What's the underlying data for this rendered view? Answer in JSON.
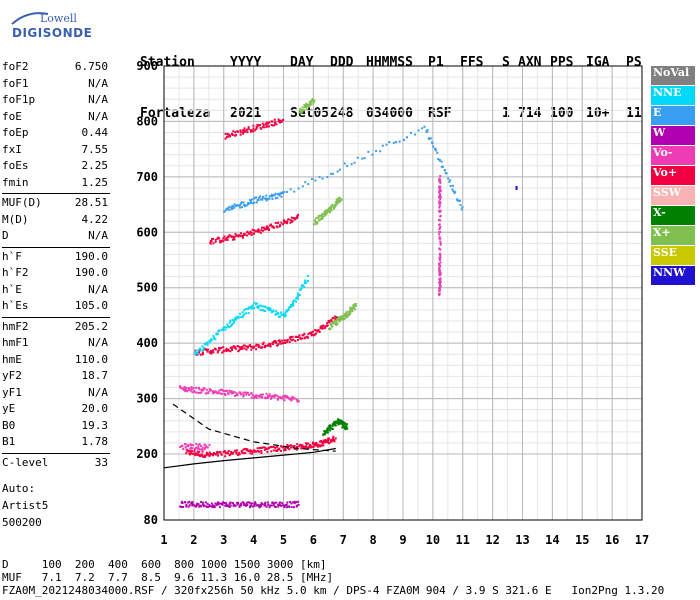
{
  "logo": {
    "line1": "Lowell",
    "line2": "DIGISONDE"
  },
  "header": {
    "labels": [
      "Station",
      "YYYY",
      "DAY",
      "DDD",
      "HHMMSS",
      "P1",
      "FFS",
      "S",
      "AXN",
      "PPS",
      "IGA",
      "PS"
    ],
    "values": [
      "Fortaleza",
      "2021",
      "Set05",
      "248",
      "034000",
      "RSF",
      "",
      "1",
      "714",
      "100",
      "10+",
      "11"
    ]
  },
  "params": [
    {
      "key": "foF2",
      "value": "6.750"
    },
    {
      "key": "foF1",
      "value": "N/A"
    },
    {
      "key": "foF1p",
      "value": "N/A"
    },
    {
      "key": "foE",
      "value": "N/A"
    },
    {
      "key": "foEp",
      "value": "0.44"
    },
    {
      "key": "fxI",
      "value": "7.55"
    },
    {
      "key": "foEs",
      "value": "2.25"
    },
    {
      "key": "fmin",
      "value": "1.25"
    },
    {
      "key": "MUF(D)",
      "value": "28.51"
    },
    {
      "key": "M(D)",
      "value": "4.22"
    },
    {
      "key": "D",
      "value": "N/A"
    },
    {
      "key": "h`F",
      "value": "190.0"
    },
    {
      "key": "h`F2",
      "value": "190.0"
    },
    {
      "key": "h`E",
      "value": "N/A"
    },
    {
      "key": "h`Es",
      "value": "105.0"
    },
    {
      "key": "hmF2",
      "value": "205.2"
    },
    {
      "key": "hmF1",
      "value": "N/A"
    },
    {
      "key": "hmE",
      "value": "110.0"
    },
    {
      "key": "yF2",
      "value": "18.7"
    },
    {
      "key": "yF1",
      "value": "N/A"
    },
    {
      "key": "yE",
      "value": "20.0"
    },
    {
      "key": "B0",
      "value": "19.3"
    },
    {
      "key": "B1",
      "value": "1.78"
    },
    {
      "key": "C-level",
      "value": "33"
    }
  ],
  "auto": {
    "label": "Auto:",
    "system": "Artist5",
    "version": "500200"
  },
  "footer": {
    "line1": "D     100  200  400  600  800 1000 1500 3000 [km]",
    "line2": "MUF   7.1  7.2  7.7  8.5  9.6 11.3 16.0 28.5 [MHz]",
    "line3": "FZA0M_2021248034000.RSF / 320fx256h 50 kHz 5.0 km / DPS-4 FZA0M 904 / 3.9 S 321.6 E   Ion2Png 1.3.20"
  },
  "legend": [
    {
      "label": "NoVal",
      "color": "#808080"
    },
    {
      "label": "NNE",
      "color": "#00d8f8"
    },
    {
      "label": "E",
      "color": "#3a9ef0"
    },
    {
      "label": "W",
      "color": "#b000b0"
    },
    {
      "label": "Vo-",
      "color": "#f03cb4"
    },
    {
      "label": "Vo+",
      "color": "#f00040"
    },
    {
      "label": "SSW",
      "color": "#f8b4b4"
    },
    {
      "label": "X-",
      "color": "#008000"
    },
    {
      "label": "X+",
      "color": "#80c050"
    },
    {
      "label": "SSE",
      "color": "#c8c800"
    },
    {
      "label": "NNW",
      "color": "#2010d0"
    }
  ],
  "chart_data": {
    "type": "scatter",
    "xlabel": "",
    "ylabel": "",
    "xlim": [
      1,
      17
    ],
    "ylim": [
      80,
      900
    ],
    "x_ticks": [
      1,
      2,
      3,
      4,
      5,
      6,
      7,
      8,
      9,
      10,
      11,
      12,
      13,
      14,
      15,
      16,
      17
    ],
    "y_ticks": [
      80,
      200,
      300,
      400,
      500,
      600,
      700,
      800,
      900
    ],
    "grid": true,
    "legend_position": "right",
    "traces": [
      {
        "name": "O-trace F",
        "color": "#f00040",
        "points": [
          [
            1.7,
            205
          ],
          [
            2.5,
            200
          ],
          [
            3.5,
            205
          ],
          [
            4.5,
            210
          ],
          [
            5.5,
            215
          ],
          [
            6.2,
            220
          ],
          [
            6.7,
            230
          ]
        ]
      },
      {
        "name": "O-trace F 2nd hop",
        "color": "#f00040",
        "points": [
          [
            2.0,
            385
          ],
          [
            3.0,
            390
          ],
          [
            4.0,
            395
          ],
          [
            5.0,
            405
          ],
          [
            6.0,
            420
          ],
          [
            6.8,
            450
          ]
        ]
      },
      {
        "name": "O-trace F 3rd hop",
        "color": "#f00040",
        "points": [
          [
            2.5,
            585
          ],
          [
            3.5,
            595
          ],
          [
            4.5,
            610
          ],
          [
            5.5,
            630
          ]
        ]
      },
      {
        "name": "O-trace F 4th hop",
        "color": "#f00040",
        "points": [
          [
            3.0,
            775
          ],
          [
            4.0,
            790
          ],
          [
            5.0,
            805
          ]
        ]
      },
      {
        "name": "Es",
        "color": "#b000b0",
        "points": [
          [
            1.5,
            110
          ],
          [
            2.5,
            110
          ],
          [
            3.5,
            110
          ],
          [
            4.5,
            110
          ],
          [
            5.5,
            110
          ]
        ]
      },
      {
        "name": "Es 2nd hop",
        "color": "#f03cb4",
        "points": [
          [
            1.5,
            215
          ],
          [
            2.5,
            215
          ]
        ]
      },
      {
        "name": "Es 3rd hop",
        "color": "#f03cb4",
        "points": [
          [
            1.5,
            320
          ],
          [
            2.5,
            315
          ],
          [
            3.5,
            310
          ],
          [
            4.5,
            305
          ],
          [
            5.5,
            300
          ]
        ]
      },
      {
        "name": "X-trace F",
        "color": "#008000",
        "points": [
          [
            6.3,
            240
          ],
          [
            6.8,
            260
          ],
          [
            7.1,
            250
          ]
        ]
      },
      {
        "name": "X-trace F 2nd hop",
        "color": "#80c050",
        "points": [
          [
            6.5,
            430
          ],
          [
            7.0,
            450
          ],
          [
            7.4,
            470
          ]
        ]
      },
      {
        "name": "X-trace F 3rd hop",
        "color": "#80c050",
        "points": [
          [
            6.0,
            620
          ],
          [
            6.5,
            640
          ],
          [
            6.9,
            665
          ]
        ]
      },
      {
        "name": "X-trace F 4th hop",
        "color": "#80c050",
        "points": [
          [
            5.5,
            820
          ],
          [
            6.0,
            840
          ]
        ]
      },
      {
        "name": "NNE echoes",
        "color": "#00d8f8",
        "points": [
          [
            2.0,
            380
          ],
          [
            3.0,
            430
          ],
          [
            4.0,
            470
          ],
          [
            5.0,
            450
          ],
          [
            5.8,
            520
          ]
        ]
      },
      {
        "name": "E echoes",
        "color": "#3a9ef0",
        "points": [
          [
            3.0,
            640
          ],
          [
            4.0,
            660
          ],
          [
            5.0,
            670
          ],
          [
            9.7,
            790
          ],
          [
            11.0,
            640
          ]
        ]
      },
      {
        "name": "Vo- echoes",
        "color": "#f03cb4",
        "points": [
          [
            10.2,
            700
          ],
          [
            10.2,
            650
          ],
          [
            10.2,
            540
          ],
          [
            10.2,
            490
          ]
        ]
      },
      {
        "name": "NNW echoes",
        "color": "#2010d0",
        "points": [
          [
            12.8,
            680
          ]
        ]
      }
    ],
    "profile_solid": [
      [
        1.0,
        175
      ],
      [
        2.0,
        182
      ],
      [
        3.0,
        188
      ],
      [
        4.0,
        193
      ],
      [
        5.0,
        198
      ],
      [
        6.0,
        203
      ],
      [
        6.75,
        210
      ]
    ],
    "profile_dashed": [
      [
        1.3,
        290
      ],
      [
        2.5,
        245
      ],
      [
        4.0,
        222
      ],
      [
        5.5,
        210
      ],
      [
        6.75,
        205
      ]
    ]
  }
}
